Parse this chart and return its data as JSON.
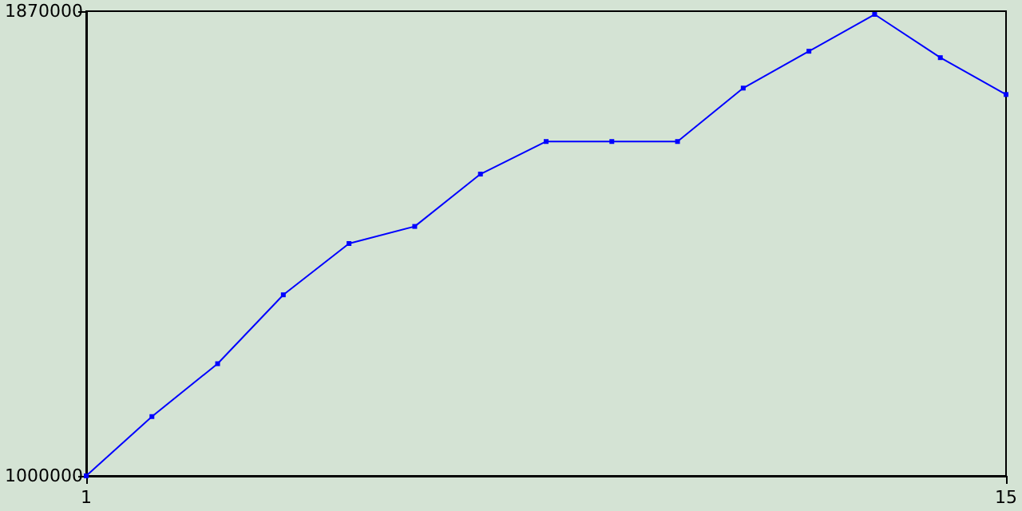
{
  "chart_data": {
    "type": "line",
    "x": [
      1,
      2,
      3,
      4,
      5,
      6,
      7,
      8,
      9,
      10,
      11,
      12,
      13,
      14,
      15
    ],
    "series": [
      {
        "color": "#0000ff",
        "values": [
          1000000,
          1111000,
          1210000,
          1339000,
          1435000,
          1467000,
          1565000,
          1626000,
          1626000,
          1626000,
          1726000,
          1795000,
          1864000,
          1783000,
          1714000
        ]
      }
    ],
    "xlim": [
      1,
      15
    ],
    "xticks": [
      1,
      15
    ],
    "ylim": [
      1000000,
      1870000
    ],
    "yticks": [
      1000000,
      1870000
    ],
    "grid": false,
    "marker": "square",
    "line_style": "solid"
  }
}
